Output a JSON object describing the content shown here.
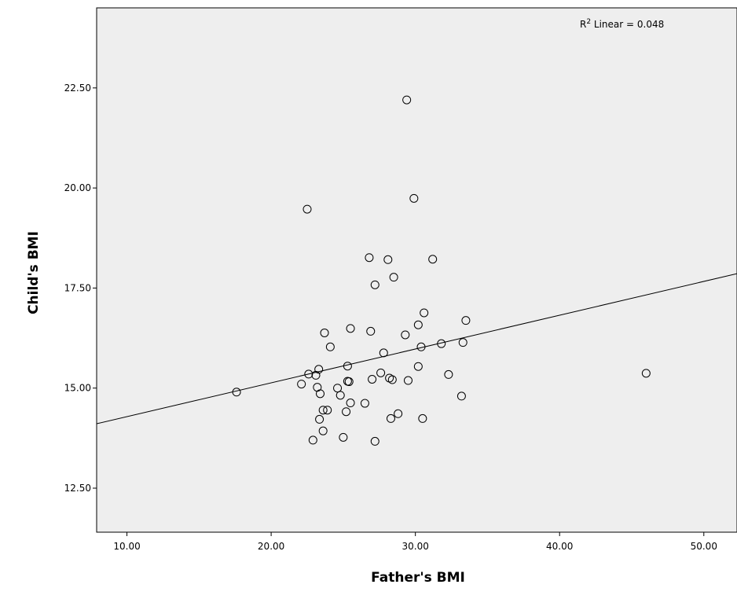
{
  "chart_data": {
    "type": "scatter",
    "title": "",
    "xlabel": "Father's BMI",
    "ylabel": "Child's BMI",
    "xlim": [
      7.9,
      52.3
    ],
    "ylim": [
      11.4,
      24.5
    ],
    "x_ticks": [
      10,
      20,
      30,
      40,
      50
    ],
    "x_tick_labels": [
      "10.00",
      "20.00",
      "30.00",
      "40.00",
      "50.00"
    ],
    "y_ticks": [
      12.5,
      15,
      17.5,
      20,
      22.5
    ],
    "y_tick_labels": [
      "12.50",
      "15.00",
      "17.50",
      "20.00",
      "22.50"
    ],
    "grid": false,
    "plot_background": "#eeeeee",
    "annotation": {
      "prefix": "R",
      "superscript": "2",
      "suffix": " Linear = 0.048"
    },
    "fit_line": {
      "type": "linear",
      "x": [
        7.9,
        52.3
      ],
      "y": [
        14.11,
        17.86
      ]
    },
    "series": [
      {
        "values": [
          [
            17.6,
            14.9
          ],
          [
            22.5,
            19.47
          ],
          [
            22.1,
            15.1
          ],
          [
            22.6,
            15.35
          ],
          [
            23.1,
            15.32
          ],
          [
            23.3,
            15.47
          ],
          [
            23.4,
            14.86
          ],
          [
            23.2,
            15.02
          ],
          [
            23.7,
            16.38
          ],
          [
            23.9,
            14.45
          ],
          [
            23.6,
            14.45
          ],
          [
            23.35,
            14.22
          ],
          [
            23.6,
            13.93
          ],
          [
            22.9,
            13.7
          ],
          [
            24.1,
            16.03
          ],
          [
            24.6,
            15.0
          ],
          [
            24.8,
            14.82
          ],
          [
            25.3,
            15.55
          ],
          [
            25.3,
            15.17
          ],
          [
            25.4,
            15.16
          ],
          [
            25.5,
            14.63
          ],
          [
            25.2,
            14.41
          ],
          [
            25.0,
            13.77
          ],
          [
            25.5,
            16.49
          ],
          [
            26.5,
            14.62
          ],
          [
            26.8,
            18.26
          ],
          [
            26.9,
            16.42
          ],
          [
            27.0,
            15.22
          ],
          [
            27.2,
            17.58
          ],
          [
            27.6,
            15.38
          ],
          [
            27.8,
            15.88
          ],
          [
            28.1,
            18.21
          ],
          [
            28.2,
            15.25
          ],
          [
            28.4,
            15.21
          ],
          [
            28.5,
            17.77
          ],
          [
            28.8,
            14.36
          ],
          [
            28.3,
            14.24
          ],
          [
            27.2,
            13.67
          ],
          [
            29.4,
            22.2
          ],
          [
            29.3,
            16.33
          ],
          [
            29.5,
            15.19
          ],
          [
            29.9,
            19.74
          ],
          [
            30.2,
            16.58
          ],
          [
            30.4,
            16.03
          ],
          [
            30.6,
            16.88
          ],
          [
            30.2,
            15.54
          ],
          [
            30.5,
            14.24
          ],
          [
            31.2,
            18.22
          ],
          [
            31.8,
            16.11
          ],
          [
            32.3,
            15.34
          ],
          [
            33.2,
            14.8
          ],
          [
            33.3,
            16.14
          ],
          [
            33.5,
            16.69
          ],
          [
            46.0,
            15.37
          ]
        ]
      }
    ]
  }
}
